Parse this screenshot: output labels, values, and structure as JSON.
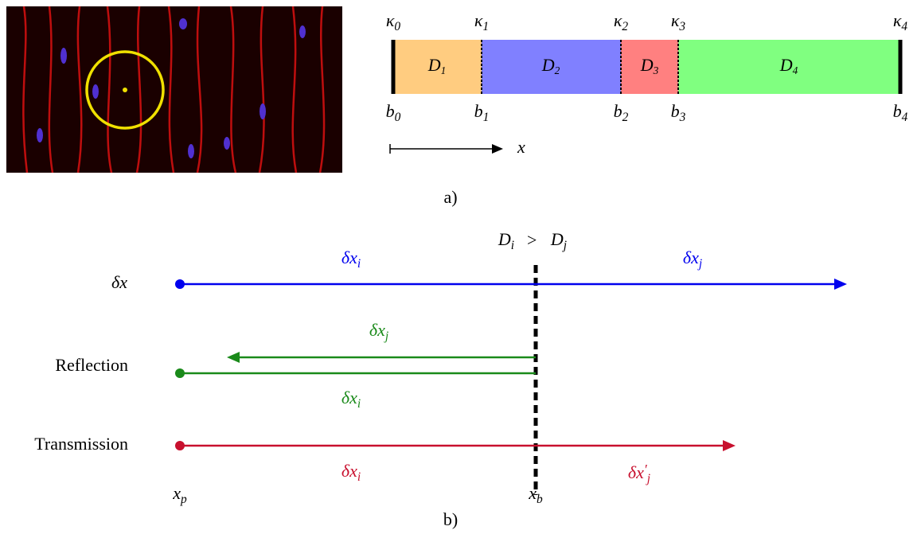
{
  "panel_a": {
    "kappa_labels": [
      {
        "base": "κ",
        "sub": "0"
      },
      {
        "base": "κ",
        "sub": "1"
      },
      {
        "base": "κ",
        "sub": "2"
      },
      {
        "base": "κ",
        "sub": "3"
      },
      {
        "base": "κ",
        "sub": "4"
      }
    ],
    "domain_labels": [
      {
        "base": "D",
        "sub": "1"
      },
      {
        "base": "D",
        "sub": "2"
      },
      {
        "base": "D",
        "sub": "3"
      },
      {
        "base": "D",
        "sub": "4"
      }
    ],
    "boundary_labels": [
      {
        "base": "b",
        "sub": "0"
      },
      {
        "base": "b",
        "sub": "1"
      },
      {
        "base": "b",
        "sub": "2"
      },
      {
        "base": "b",
        "sub": "3"
      },
      {
        "base": "b",
        "sub": "4"
      }
    ],
    "axis_label": "x",
    "caption": "a)"
  },
  "panel_b": {
    "condition": {
      "left": {
        "base": "D",
        "sub": "i"
      },
      "op": ">",
      "right": {
        "base": "D",
        "sub": "j"
      }
    },
    "rows": [
      {
        "label": {
          "base": "δx"
        },
        "segment_labels": [
          {
            "base": "δx",
            "sub": "i"
          },
          {
            "base": "δx",
            "sub": "j"
          }
        ]
      },
      {
        "label": "Reflection",
        "segment_labels": [
          {
            "base": "δx",
            "sub": "j"
          },
          {
            "base": "δx",
            "sub": "i"
          }
        ]
      },
      {
        "label": "Transmission",
        "segment_labels": [
          {
            "base": "δx",
            "sub": "i"
          },
          {
            "base": "δx",
            "prime": "′",
            "sub": "j"
          }
        ]
      }
    ],
    "point_labels": [
      {
        "base": "x",
        "sub": "p"
      },
      {
        "base": "x",
        "sub": "b"
      }
    ],
    "caption": "b)"
  }
}
